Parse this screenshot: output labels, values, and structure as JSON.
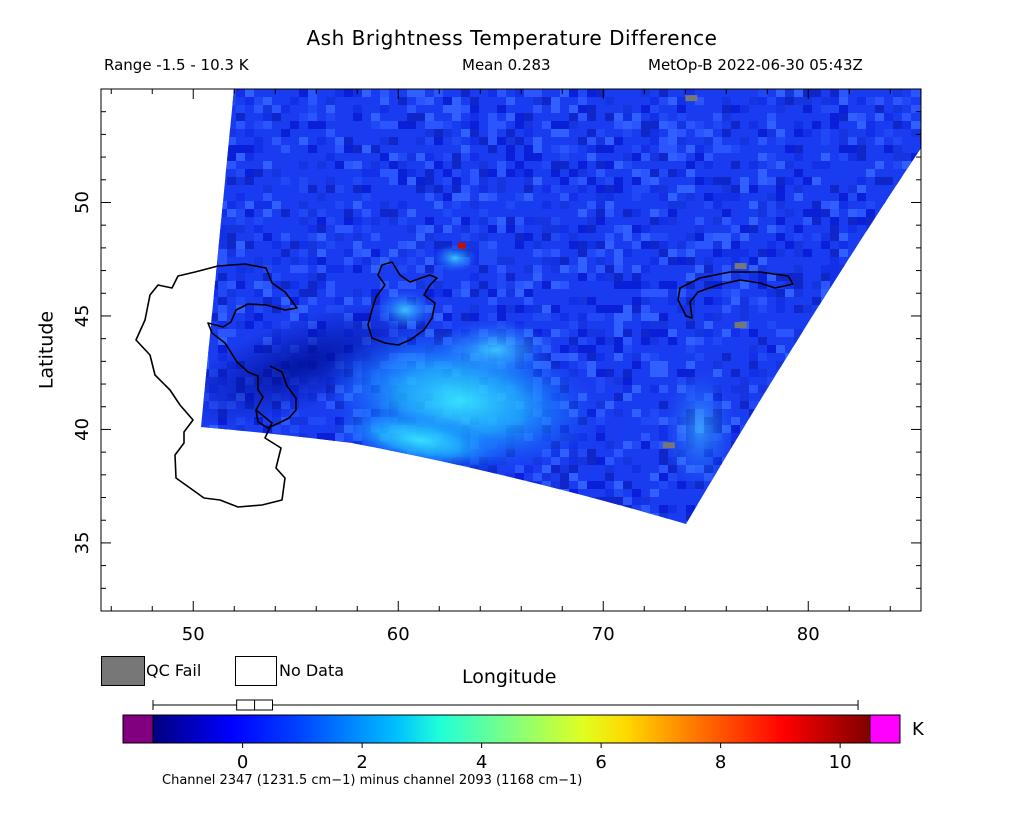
{
  "chart_data": {
    "type": "heatmap",
    "title": "Ash Brightness Temperature Difference",
    "header": {
      "range": "Range -1.5 - 10.3 K",
      "mean": "Mean 0.283",
      "satellite": "MetOp-B 2022-06-30 05:43Z"
    },
    "xlabel": "Longitude",
    "ylabel": "Latitude",
    "xlim": [
      45.5,
      85.5
    ],
    "ylim": [
      32,
      55
    ],
    "x_ticks": [
      50,
      60,
      70,
      80
    ],
    "y_ticks": [
      35,
      40,
      45,
      50
    ],
    "grid": false,
    "swath_corners_lonlat": [
      [
        51.5,
        55
      ],
      [
        85.5,
        55
      ],
      [
        85.5,
        52.5
      ],
      [
        74,
        36
      ],
      [
        50,
        40
      ]
    ],
    "field_mean": 0.283,
    "field_range": [
      -1.5,
      10.3
    ],
    "colorbar": {
      "min": -1.5,
      "max": 10.5,
      "ticks": [
        0,
        2,
        4,
        6,
        8,
        10
      ],
      "unit": "K",
      "label": "Channel 2347 (1231.5 cm−1) minus channel 2093 (1168 cm−1)",
      "under_color": "#800080",
      "over_color": "#ff00ff",
      "box_whisker": {
        "min": -1.5,
        "q1": -0.1,
        "median": 0.2,
        "q3": 0.5,
        "max": 10.3
      }
    },
    "legend": [
      {
        "label": "QC Fail",
        "color": "#777777"
      },
      {
        "label": "No Data",
        "color": "#ffffff"
      }
    ],
    "qc_fail_pixels": [
      [
        74.3,
        54.6
      ],
      [
        76.7,
        47.2
      ],
      [
        76.7,
        44.6
      ],
      [
        73.2,
        39.3
      ]
    ],
    "hot_pixels": [
      {
        "lon": 63.1,
        "lat": 48.1,
        "value": 10.0
      }
    ],
    "plume": {
      "center": [
        63.5,
        41.5
      ],
      "peak_value": 3.5
    },
    "coastlines": "Caspian Sea and Lake Balkhash"
  }
}
